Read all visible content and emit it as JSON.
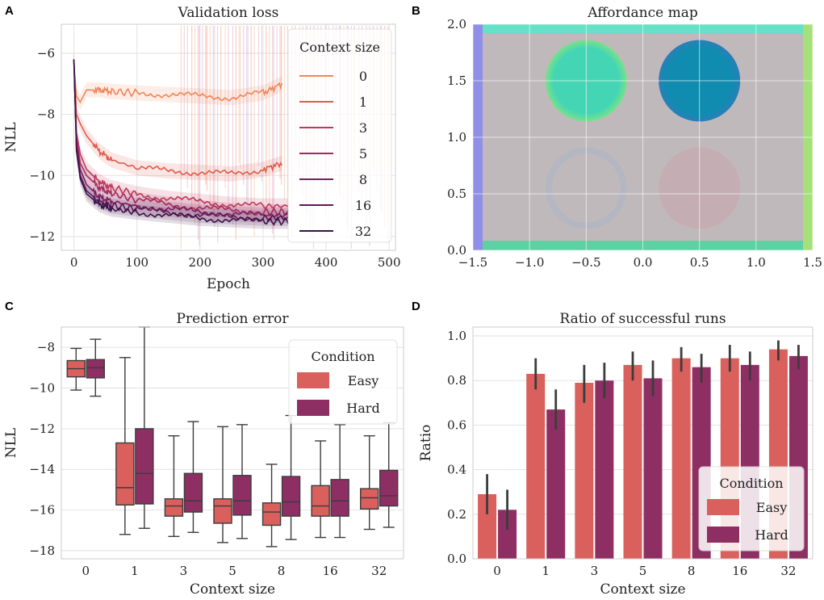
{
  "chart_data": [
    {
      "panel": "A",
      "type": "line",
      "title": "Validation loss",
      "xlabel": "Epoch",
      "ylabel": "NLL",
      "xlim": [
        -20,
        510
      ],
      "ylim": [
        -12.45,
        -5.05
      ],
      "xticks": [
        "0",
        "100",
        "200",
        "300",
        "400",
        "500"
      ],
      "yticks": [
        "−6",
        "−8",
        "−10",
        "−12"
      ],
      "legend_title": "Context size",
      "legend_position": "top-right",
      "series": [
        {
          "name": "0",
          "color": "#f0855a",
          "x": [
            0,
            4,
            10,
            20,
            40,
            60,
            100,
            150,
            200,
            250,
            300,
            330
          ],
          "y": [
            -6.4,
            -7.4,
            -7.6,
            -7.2,
            -7.2,
            -7.25,
            -7.3,
            -7.35,
            -7.4,
            -7.45,
            -7.3,
            -7.0
          ]
        },
        {
          "name": "1",
          "color": "#e05a4a",
          "x": [
            0,
            4,
            10,
            20,
            40,
            60,
            100,
            150,
            200,
            250,
            300,
            330
          ],
          "y": [
            -6.3,
            -8.0,
            -8.3,
            -8.7,
            -9.2,
            -9.5,
            -9.75,
            -9.85,
            -9.9,
            -9.95,
            -9.8,
            -9.6
          ]
        },
        {
          "name": "3",
          "color": "#c0385a",
          "x": [
            0,
            4,
            10,
            20,
            40,
            60,
            100,
            150,
            200,
            250,
            300,
            340
          ],
          "y": [
            -6.25,
            -8.6,
            -9.3,
            -9.8,
            -10.2,
            -10.4,
            -10.6,
            -10.75,
            -10.85,
            -10.95,
            -11.0,
            -11.0
          ]
        },
        {
          "name": "5",
          "color": "#a32a5e",
          "x": [
            0,
            4,
            10,
            20,
            40,
            60,
            100,
            150,
            200,
            250,
            300,
            340
          ],
          "y": [
            -6.2,
            -8.8,
            -9.6,
            -10.0,
            -10.4,
            -10.6,
            -10.8,
            -10.95,
            -11.05,
            -11.15,
            -11.2,
            -11.2
          ]
        },
        {
          "name": "8",
          "color": "#7f1e5e",
          "x": [
            0,
            4,
            10,
            20,
            40,
            60,
            100,
            150,
            200,
            250,
            300,
            340
          ],
          "y": [
            -6.2,
            -9.0,
            -9.8,
            -10.3,
            -10.7,
            -10.85,
            -11.0,
            -11.1,
            -11.2,
            -11.25,
            -11.3,
            -11.3
          ]
        },
        {
          "name": "16",
          "color": "#5c1a57",
          "x": [
            0,
            4,
            10,
            20,
            40,
            60,
            100,
            150,
            200,
            250,
            300,
            340
          ],
          "y": [
            -6.2,
            -9.1,
            -10.0,
            -10.5,
            -10.85,
            -11.0,
            -11.1,
            -11.2,
            -11.3,
            -11.35,
            -11.4,
            -11.4
          ]
        },
        {
          "name": "32",
          "color": "#3a124a",
          "x": [
            0,
            4,
            10,
            20,
            40,
            60,
            100,
            150,
            200,
            250,
            300,
            340
          ],
          "y": [
            -6.2,
            -9.2,
            -10.1,
            -10.6,
            -10.95,
            -11.1,
            -11.2,
            -11.3,
            -11.4,
            -11.45,
            -11.5,
            -11.5
          ]
        }
      ]
    },
    {
      "panel": "B",
      "type": "heatmap",
      "title": "Affordance map",
      "xlim": [
        -1.5,
        1.5
      ],
      "ylim": [
        0.0,
        2.0
      ],
      "xticks": [
        "−1.5",
        "−1.0",
        "−0.5",
        "0.0",
        "0.5",
        "1.0",
        "1.5"
      ],
      "yticks": [
        "0.0",
        "0.5",
        "1.0",
        "1.5",
        "2.0"
      ],
      "regions": [
        {
          "name": "circle-top-left",
          "cx": -0.5,
          "cy": 1.5,
          "r": 0.36,
          "color": "#44d6b4"
        },
        {
          "name": "circle-top-right",
          "cx": 0.5,
          "cy": 1.5,
          "r": 0.36,
          "color": "#0f8cb0"
        },
        {
          "name": "ring-bottom-left",
          "cx": -0.5,
          "cy": 0.55,
          "r": 0.36,
          "color": "#a9b7c6"
        },
        {
          "name": "circle-bottom-right",
          "cx": 0.5,
          "cy": 0.55,
          "r": 0.36,
          "color": "#c9a6ad"
        }
      ]
    },
    {
      "panel": "C",
      "type": "box",
      "title": "Prediction error",
      "xlabel": "Context size",
      "ylabel": "NLL",
      "ylim": [
        -18.4,
        -7.0
      ],
      "yticks": [
        "−8",
        "−10",
        "−12",
        "−14",
        "−16",
        "−18"
      ],
      "categories": [
        "0",
        "1",
        "3",
        "5",
        "8",
        "16",
        "32"
      ],
      "legend_title": "Condition",
      "legend_position": "top-right",
      "series": [
        {
          "name": "Easy",
          "color": "#d9605c",
          "boxes": [
            {
              "min": -10.1,
              "q1": -9.45,
              "median": -9.05,
              "q3": -8.65,
              "max": -8.05
            },
            {
              "min": -17.2,
              "q1": -15.75,
              "median": -14.9,
              "q3": -12.7,
              "max": -8.5
            },
            {
              "min": -17.3,
              "q1": -16.3,
              "median": -15.8,
              "q3": -15.45,
              "max": -12.35
            },
            {
              "min": -17.6,
              "q1": -16.65,
              "median": -15.8,
              "q3": -15.45,
              "max": -11.9
            },
            {
              "min": -17.8,
              "q1": -16.75,
              "median": -16.1,
              "q3": -15.65,
              "max": -13.75
            },
            {
              "min": -17.35,
              "q1": -16.3,
              "median": -15.8,
              "q3": -14.8,
              "max": -12.6
            },
            {
              "min": -16.95,
              "q1": -15.95,
              "median": -15.4,
              "q3": -14.95,
              "max": -12.35
            }
          ]
        },
        {
          "name": "Hard",
          "color": "#8e2f64",
          "boxes": [
            {
              "min": -10.4,
              "q1": -9.5,
              "median": -9.0,
              "q3": -8.6,
              "max": -7.6
            },
            {
              "min": -16.9,
              "q1": -15.7,
              "median": -14.2,
              "q3": -12.0,
              "max": -7.0
            },
            {
              "min": -17.1,
              "q1": -16.1,
              "median": -15.55,
              "q3": -14.2,
              "max": -11.65
            },
            {
              "min": -17.4,
              "q1": -16.25,
              "median": -15.55,
              "q3": -14.3,
              "max": -11.8
            },
            {
              "min": -17.45,
              "q1": -16.3,
              "median": -15.6,
              "q3": -14.35,
              "max": -11.35
            },
            {
              "min": -17.35,
              "q1": -16.3,
              "median": -15.55,
              "q3": -14.5,
              "max": -11.8
            },
            {
              "min": -16.85,
              "q1": -15.8,
              "median": -15.3,
              "q3": -14.05,
              "max": -11.7
            }
          ]
        }
      ]
    },
    {
      "panel": "D",
      "type": "bar",
      "title": "Ratio of successful runs",
      "xlabel": "Context size",
      "ylabel": "Ratio",
      "ylim": [
        0.0,
        1.0
      ],
      "yticks": [
        "0.0",
        "0.2",
        "0.4",
        "0.6",
        "0.8",
        "1.0"
      ],
      "categories": [
        "0",
        "1",
        "3",
        "5",
        "8",
        "16",
        "32"
      ],
      "legend_title": "Condition",
      "legend_position": "bottom-right",
      "series": [
        {
          "name": "Easy",
          "color": "#d9605c",
          "values": [
            0.29,
            0.83,
            0.79,
            0.87,
            0.9,
            0.9,
            0.94
          ],
          "err_low": [
            0.2,
            0.76,
            0.7,
            0.8,
            0.84,
            0.84,
            0.89
          ],
          "err_high": [
            0.38,
            0.9,
            0.87,
            0.93,
            0.95,
            0.96,
            0.98
          ]
        },
        {
          "name": "Hard",
          "color": "#8e2f64",
          "values": [
            0.22,
            0.67,
            0.8,
            0.81,
            0.86,
            0.87,
            0.91
          ],
          "err_low": [
            0.13,
            0.58,
            0.72,
            0.73,
            0.79,
            0.8,
            0.85
          ],
          "err_high": [
            0.31,
            0.76,
            0.88,
            0.89,
            0.92,
            0.93,
            0.96
          ]
        }
      ]
    }
  ]
}
